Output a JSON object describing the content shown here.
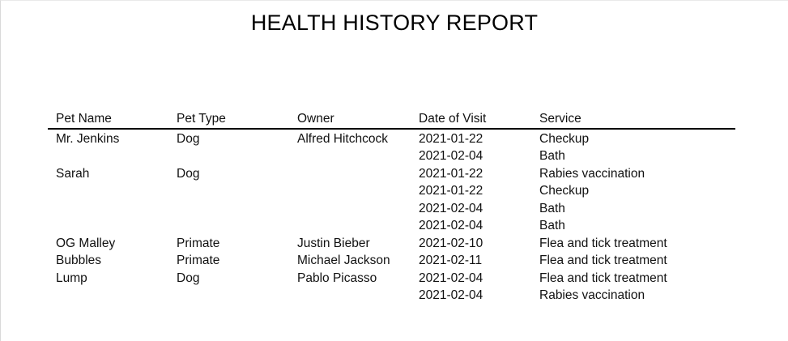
{
  "report": {
    "title": "HEALTH HISTORY REPORT"
  },
  "table": {
    "columns": {
      "pet_name": "Pet Name",
      "pet_type": "Pet Type",
      "owner": "Owner",
      "date_of_visit": "Date of Visit",
      "service": "Service"
    },
    "rows": [
      {
        "pet_name": "Mr. Jenkins",
        "pet_type": "Dog",
        "owner": "Alfred Hitchcock",
        "date": "2021-01-22",
        "service": "Checkup"
      },
      {
        "pet_name": "",
        "pet_type": "",
        "owner": "",
        "date": "2021-02-04",
        "service": "Bath"
      },
      {
        "pet_name": "Sarah",
        "pet_type": "Dog",
        "owner": "",
        "date": "2021-01-22",
        "service": "Rabies vaccination"
      },
      {
        "pet_name": "",
        "pet_type": "",
        "owner": "",
        "date": "2021-01-22",
        "service": "Checkup"
      },
      {
        "pet_name": "",
        "pet_type": "",
        "owner": "",
        "date": "2021-02-04",
        "service": "Bath"
      },
      {
        "pet_name": "",
        "pet_type": "",
        "owner": "",
        "date": "2021-02-04",
        "service": "Bath"
      },
      {
        "pet_name": "OG Malley",
        "pet_type": "Primate",
        "owner": "Justin Bieber",
        "date": "2021-02-10",
        "service": "Flea and tick treatment"
      },
      {
        "pet_name": "Bubbles",
        "pet_type": "Primate",
        "owner": "Michael Jackson",
        "date": "2021-02-11",
        "service": "Flea and tick treatment"
      },
      {
        "pet_name": "Lump",
        "pet_type": "Dog",
        "owner": "Pablo Picasso",
        "date": "2021-02-04",
        "service": "Flea and tick treatment"
      },
      {
        "pet_name": "",
        "pet_type": "",
        "owner": "",
        "date": "2021-02-04",
        "service": "Rabies vaccination"
      }
    ]
  }
}
